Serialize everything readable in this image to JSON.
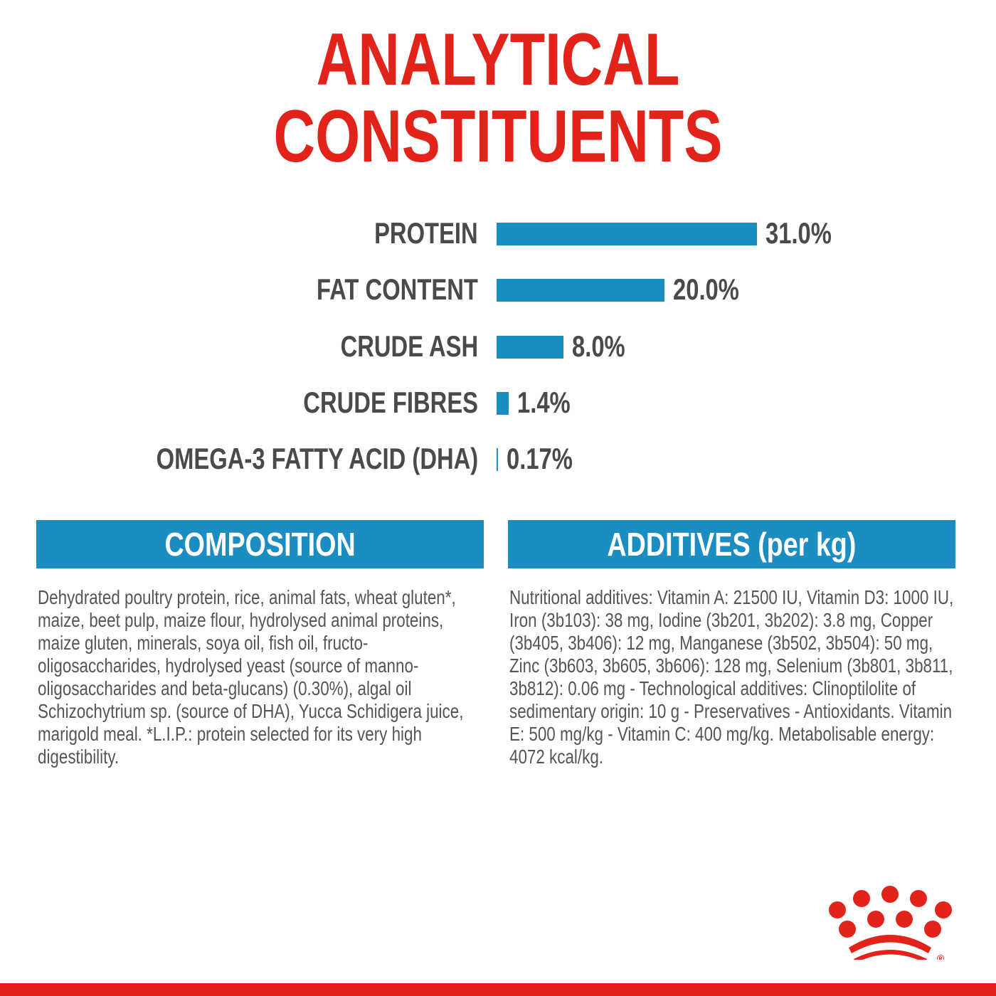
{
  "title": {
    "line1": "ANALYTICAL",
    "line2": "CONSTITUENTS"
  },
  "colors": {
    "accent_red": "#e2231a",
    "bar_blue": "#1b8dc1",
    "text_gray": "#4a4a4a"
  },
  "chart_data": {
    "type": "bar",
    "orientation": "horizontal",
    "title": "ANALYTICAL CONSTITUENTS",
    "categories": [
      "PROTEIN",
      "FAT CONTENT",
      "CRUDE ASH",
      "CRUDE FIBRES",
      "OMEGA-3 FATTY ACID (DHA)"
    ],
    "values": [
      31.0,
      20.0,
      8.0,
      1.4,
      0.17
    ],
    "value_labels": [
      "31.0%",
      "20.0%",
      "8.0%",
      "1.4%",
      "0.17%"
    ],
    "unit": "%",
    "xlim": [
      0,
      31
    ],
    "grid": false
  },
  "composition": {
    "heading": "COMPOSITION",
    "text": "Dehydrated poultry protein, rice, animal fats, wheat gluten*, maize, beet pulp, maize flour, hydrolysed animal proteins, maize gluten, minerals, soya oil, fish oil, fructo-oligosaccharides, hydrolysed yeast (source of manno-oligosaccharides and beta-glucans) (0.30%), algal oil Schizochytrium sp. (source of DHA), Yucca Schidigera juice, marigold meal. *L.I.P.: protein selected for its very high digestibility."
  },
  "additives": {
    "heading": "ADDITIVES (per kg)",
    "text": "Nutritional additives: Vitamin A: 21500 IU, Vitamin D3: 1000 IU, Iron (3b103): 38 mg, Iodine (3b201, 3b202): 3.8 mg, Copper (3b405, 3b406): 12 mg, Manganese (3b502, 3b504): 50 mg, Zinc (3b603, 3b605, 3b606): 128 mg, Selenium (3b801, 3b811, 3b812): 0.06 mg - Technological additives: Clinoptilolite of sedimentary origin: 10 g - Preservatives - Antioxidants. Vitamin E: 500 mg/kg - Vitamin C: 400 mg/kg. Metabolisable energy: 4072 kcal/kg."
  },
  "logo": {
    "name": "crown-logo",
    "mark": "®"
  }
}
